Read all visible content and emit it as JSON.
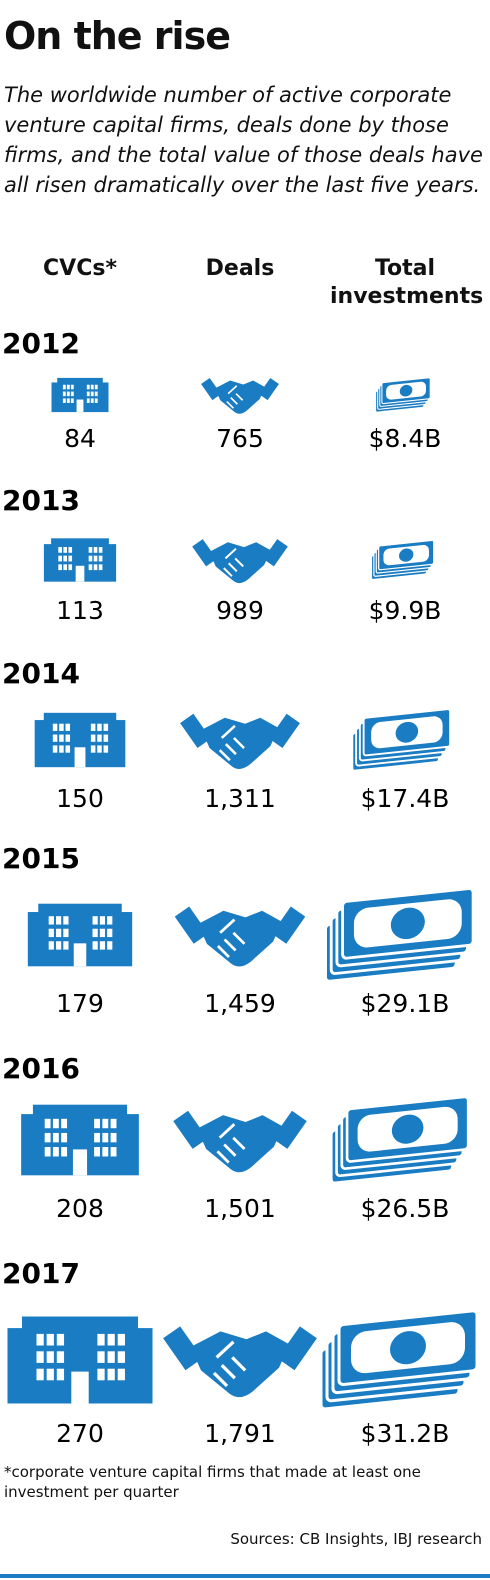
{
  "chart_data": {
    "type": "pictogram",
    "title": "On the rise",
    "subtitle": "The worldwide number of active corporate venture capital firms, deals done by those firms, and the total value of those deals have all risen dramatically over the last five years.",
    "categories": [
      "2012",
      "2013",
      "2014",
      "2015",
      "2016",
      "2017"
    ],
    "series": [
      {
        "name": "CVCs*",
        "color": "#1a7cc2",
        "icon": "building",
        "values": [
          84,
          113,
          150,
          179,
          208,
          270
        ]
      },
      {
        "name": "Deals",
        "color": "#1a7cc2",
        "icon": "handshake",
        "values": [
          765,
          989,
          1311,
          1459,
          1501,
          1791
        ],
        "value_labels": [
          "765",
          "989",
          "1,311",
          "1,459",
          "1,501",
          "1,791"
        ]
      },
      {
        "name": "Total investments",
        "color": "#1a7cc2",
        "icon": "money",
        "values": [
          8.4,
          9.9,
          17.4,
          29.1,
          26.5,
          31.2
        ],
        "value_labels": [
          "$8.4B",
          "$9.9B",
          "$17.4B",
          "$29.1B",
          "$26.5B",
          "$31.2B"
        ]
      }
    ],
    "footnote": "*corporate venture capital firms that made at least one investment per quarter",
    "source": "Sources: CB Insights, IBJ research"
  }
}
